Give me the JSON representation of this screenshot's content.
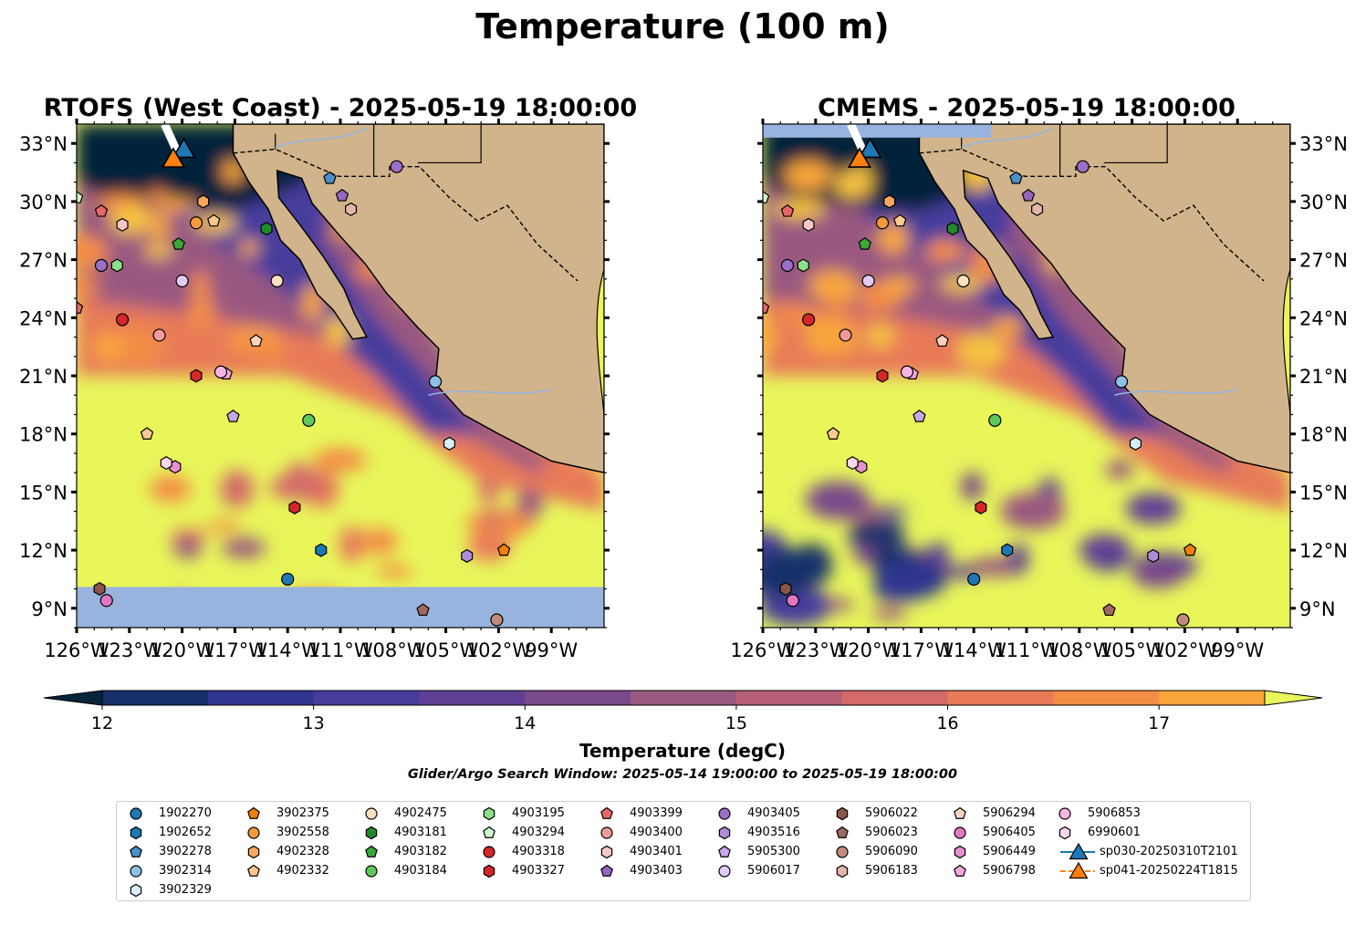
{
  "figure": {
    "suptitle": "Temperature (100 m)",
    "search_window": "Glider/Argo Search Window: 2025-05-14 19:00:00 to 2025-05-19 18:00:00"
  },
  "colors": {
    "ocean_deep": "#0b2438",
    "land": "#d2b48c",
    "water_mask": "#98b4de",
    "colormap": [
      "#06243a",
      "#16306a",
      "#2f3590",
      "#463c9c",
      "#5f3f94",
      "#7a4a8a",
      "#9a5880",
      "#b85f78",
      "#d36a6a",
      "#e87a58",
      "#f38d45",
      "#f8a63a",
      "#f6c240",
      "#e8f65a"
    ]
  },
  "chart_data": [
    {
      "type": "map",
      "title": "RTOFS (West Coast) - 2025-05-19 18:00:00",
      "xlim": [
        -126,
        -96
      ],
      "ylim": [
        8,
        34
      ],
      "xticks": [
        "126°W",
        "123°W",
        "120°W",
        "117°W",
        "114°W",
        "111°W",
        "108°W",
        "105°W",
        "102°W",
        "99°W"
      ],
      "yticks": [
        "9°N",
        "12°N",
        "15°N",
        "18°N",
        "21°N",
        "24°N",
        "27°N",
        "30°N",
        "33°N"
      ],
      "ytick_side": "left"
    },
    {
      "type": "map",
      "title": "CMEMS - 2025-05-19 18:00:00",
      "xlim": [
        -126,
        -96
      ],
      "ylim": [
        8,
        34
      ],
      "xticks": [
        "126°W",
        "123°W",
        "120°W",
        "117°W",
        "114°W",
        "111°W",
        "108°W",
        "105°W",
        "102°W",
        "99°W"
      ],
      "yticks": [
        "9°N",
        "12°N",
        "15°N",
        "18°N",
        "21°N",
        "24°N",
        "27°N",
        "30°N",
        "33°N"
      ],
      "ytick_side": "right"
    }
  ],
  "colorbar": {
    "label": "Temperature (degC)",
    "range": [
      11.75,
      17.75
    ],
    "levels": [
      12.0,
      12.5,
      13.0,
      13.5,
      14.0,
      14.5,
      15.0,
      15.5,
      16.0,
      16.5,
      17.0,
      17.5
    ],
    "ticks": [
      "12",
      "13",
      "14",
      "15",
      "16",
      "17"
    ],
    "tick_values": [
      12,
      13,
      14,
      15,
      16,
      17
    ],
    "extend": "both"
  },
  "floats": [
    {
      "id": "1902270",
      "marker": "circle",
      "color": "#1f77b4",
      "lon": -114.0,
      "lat": 10.5
    },
    {
      "id": "1902652",
      "marker": "hexagon",
      "color": "#1f77b4",
      "lon": -112.1,
      "lat": 12.0
    },
    {
      "id": "3902278",
      "marker": "pentagon",
      "color": "#4a90c8",
      "lon": -111.6,
      "lat": 31.2
    },
    {
      "id": "3902314",
      "marker": "circle",
      "color": "#8fc1e8",
      "lon": -105.6,
      "lat": 20.7
    },
    {
      "id": "3902329",
      "marker": "hexagon",
      "color": "#d8eefa",
      "lon": -104.8,
      "lat": 17.5
    },
    {
      "id": "3902375",
      "marker": "pentagon",
      "color": "#f07f10",
      "lon": -101.7,
      "lat": 12.0
    },
    {
      "id": "3902558",
      "marker": "circle",
      "color": "#f59a3c",
      "lon": -119.2,
      "lat": 28.9
    },
    {
      "id": "4902328",
      "marker": "hexagon",
      "color": "#f8a85e",
      "lon": -118.8,
      "lat": 30.0
    },
    {
      "id": "4902332",
      "marker": "pentagon",
      "color": "#fcc790",
      "lon": -118.2,
      "lat": 29.0
    },
    {
      "id": "4902475",
      "marker": "circle",
      "color": "#fde0c0",
      "lon": -114.6,
      "lat": 25.9
    },
    {
      "id": "4903181",
      "marker": "hexagon",
      "color": "#1f8a2a",
      "lon": -115.2,
      "lat": 28.6
    },
    {
      "id": "4903182",
      "marker": "pentagon",
      "color": "#38a838",
      "lon": -120.2,
      "lat": 27.8
    },
    {
      "id": "4903184",
      "marker": "circle",
      "color": "#5fc85a",
      "lon": -112.8,
      "lat": 18.7
    },
    {
      "id": "4903195",
      "marker": "hexagon",
      "color": "#8be08a",
      "lon": -123.7,
      "lat": 26.7
    },
    {
      "id": "4903294",
      "marker": "pentagon",
      "color": "#cdf7cd",
      "lon": -126.0,
      "lat": 30.2
    },
    {
      "id": "4903318",
      "marker": "circle",
      "color": "#d62728",
      "lon": -123.4,
      "lat": 23.9
    },
    {
      "id": "4903327",
      "marker": "hexagon",
      "color": "#d62728",
      "lon": -113.6,
      "lat": 14.2
    },
    {
      "id": "4903399",
      "marker": "pentagon",
      "color": "#e8686a",
      "lon": -126.0,
      "lat": 24.5
    },
    {
      "id": "4903400",
      "marker": "circle",
      "color": "#f09a9a",
      "lon": -121.3,
      "lat": 23.1
    },
    {
      "id": "4903401",
      "marker": "hexagon",
      "color": "#f8c8c8",
      "lon": -123.4,
      "lat": 28.8
    },
    {
      "id": "4903403",
      "marker": "pentagon",
      "color": "#9467bd",
      "lon": -110.9,
      "lat": 30.3
    },
    {
      "id": "4903405",
      "marker": "circle",
      "color": "#9a6fc8",
      "lon": -107.8,
      "lat": 31.8
    },
    {
      "id": "4903516",
      "marker": "hexagon",
      "color": "#b08bd8",
      "lon": -103.8,
      "lat": 11.7
    },
    {
      "id": "5905300",
      "marker": "pentagon",
      "color": "#c8a8ea",
      "lon": -117.1,
      "lat": 18.9
    },
    {
      "id": "5906017",
      "marker": "circle",
      "color": "#e2ccf6",
      "lon": -120.0,
      "lat": 25.9
    },
    {
      "id": "5906022",
      "marker": "hexagon",
      "color": "#8c564b",
      "lon": -124.7,
      "lat": 10.0
    },
    {
      "id": "5906023",
      "marker": "pentagon",
      "color": "#a0685e",
      "lon": -106.3,
      "lat": 8.9
    },
    {
      "id": "5906090",
      "marker": "circle",
      "color": "#c48a7e",
      "lon": -102.1,
      "lat": 8.4
    },
    {
      "id": "5906183",
      "marker": "hexagon",
      "color": "#e4b4a8",
      "lon": -110.4,
      "lat": 29.6
    },
    {
      "id": "5906294",
      "marker": "pentagon",
      "color": "#fbd4c0",
      "lon": -115.8,
      "lat": 22.8
    },
    {
      "id": "5906405",
      "marker": "circle",
      "color": "#e377c2",
      "lon": -124.3,
      "lat": 9.4
    },
    {
      "id": "5906449",
      "marker": "hexagon",
      "color": "#e88fcf",
      "lon": -120.4,
      "lat": 16.3
    },
    {
      "id": "5906798",
      "marker": "pentagon",
      "color": "#f0a8dc",
      "lon": -117.5,
      "lat": 21.1
    },
    {
      "id": "5906853",
      "marker": "circle",
      "color": "#f6b6e4",
      "lon": -117.8,
      "lat": 21.2
    },
    {
      "id": "6990601",
      "marker": "hexagon",
      "color": "#fad8ef",
      "lon": -120.9,
      "lat": 16.5
    }
  ],
  "extra_points": [
    {
      "marker": "pentagon",
      "color": "#fcc790",
      "lon": -122.0,
      "lat": 18.0
    },
    {
      "marker": "pentagon",
      "color": "#e8686a",
      "lon": -124.6,
      "lat": 29.5
    },
    {
      "marker": "circle",
      "color": "#9a6fc8",
      "lon": -124.6,
      "lat": 26.7
    },
    {
      "marker": "hexagon",
      "color": "#d62728",
      "lon": -119.2,
      "lat": 21.0
    }
  ],
  "gliders": [
    {
      "id": "sp030-20250310T2101",
      "marker": "triangle",
      "color": "#1f77b4",
      "lon": -119.9,
      "lat": 32.6
    },
    {
      "id": "sp041-20250224T1815",
      "marker": "triangle",
      "color": "#ff7f0e",
      "lon": -120.5,
      "lat": 32.1
    }
  ],
  "legend": {
    "columns": [
      [
        "1902270",
        "1902652",
        "3902278",
        "3902314",
        "3902329"
      ],
      [
        "3902375",
        "3902558",
        "4902328",
        "4902332"
      ],
      [
        "4902475",
        "4903181",
        "4903182",
        "4903184"
      ],
      [
        "4903195",
        "4903294",
        "4903318",
        "4903327"
      ],
      [
        "4903399",
        "4903400",
        "4903401",
        "4903403"
      ],
      [
        "4903405",
        "4903516",
        "5905300",
        "5906017"
      ],
      [
        "5906022",
        "5906023",
        "5906090",
        "5906183"
      ],
      [
        "5906294",
        "5906405",
        "5906449",
        "5906798"
      ],
      [
        "5906853",
        "6990601",
        "sp030-20250310T2101",
        "sp041-20250224T1815"
      ]
    ]
  }
}
